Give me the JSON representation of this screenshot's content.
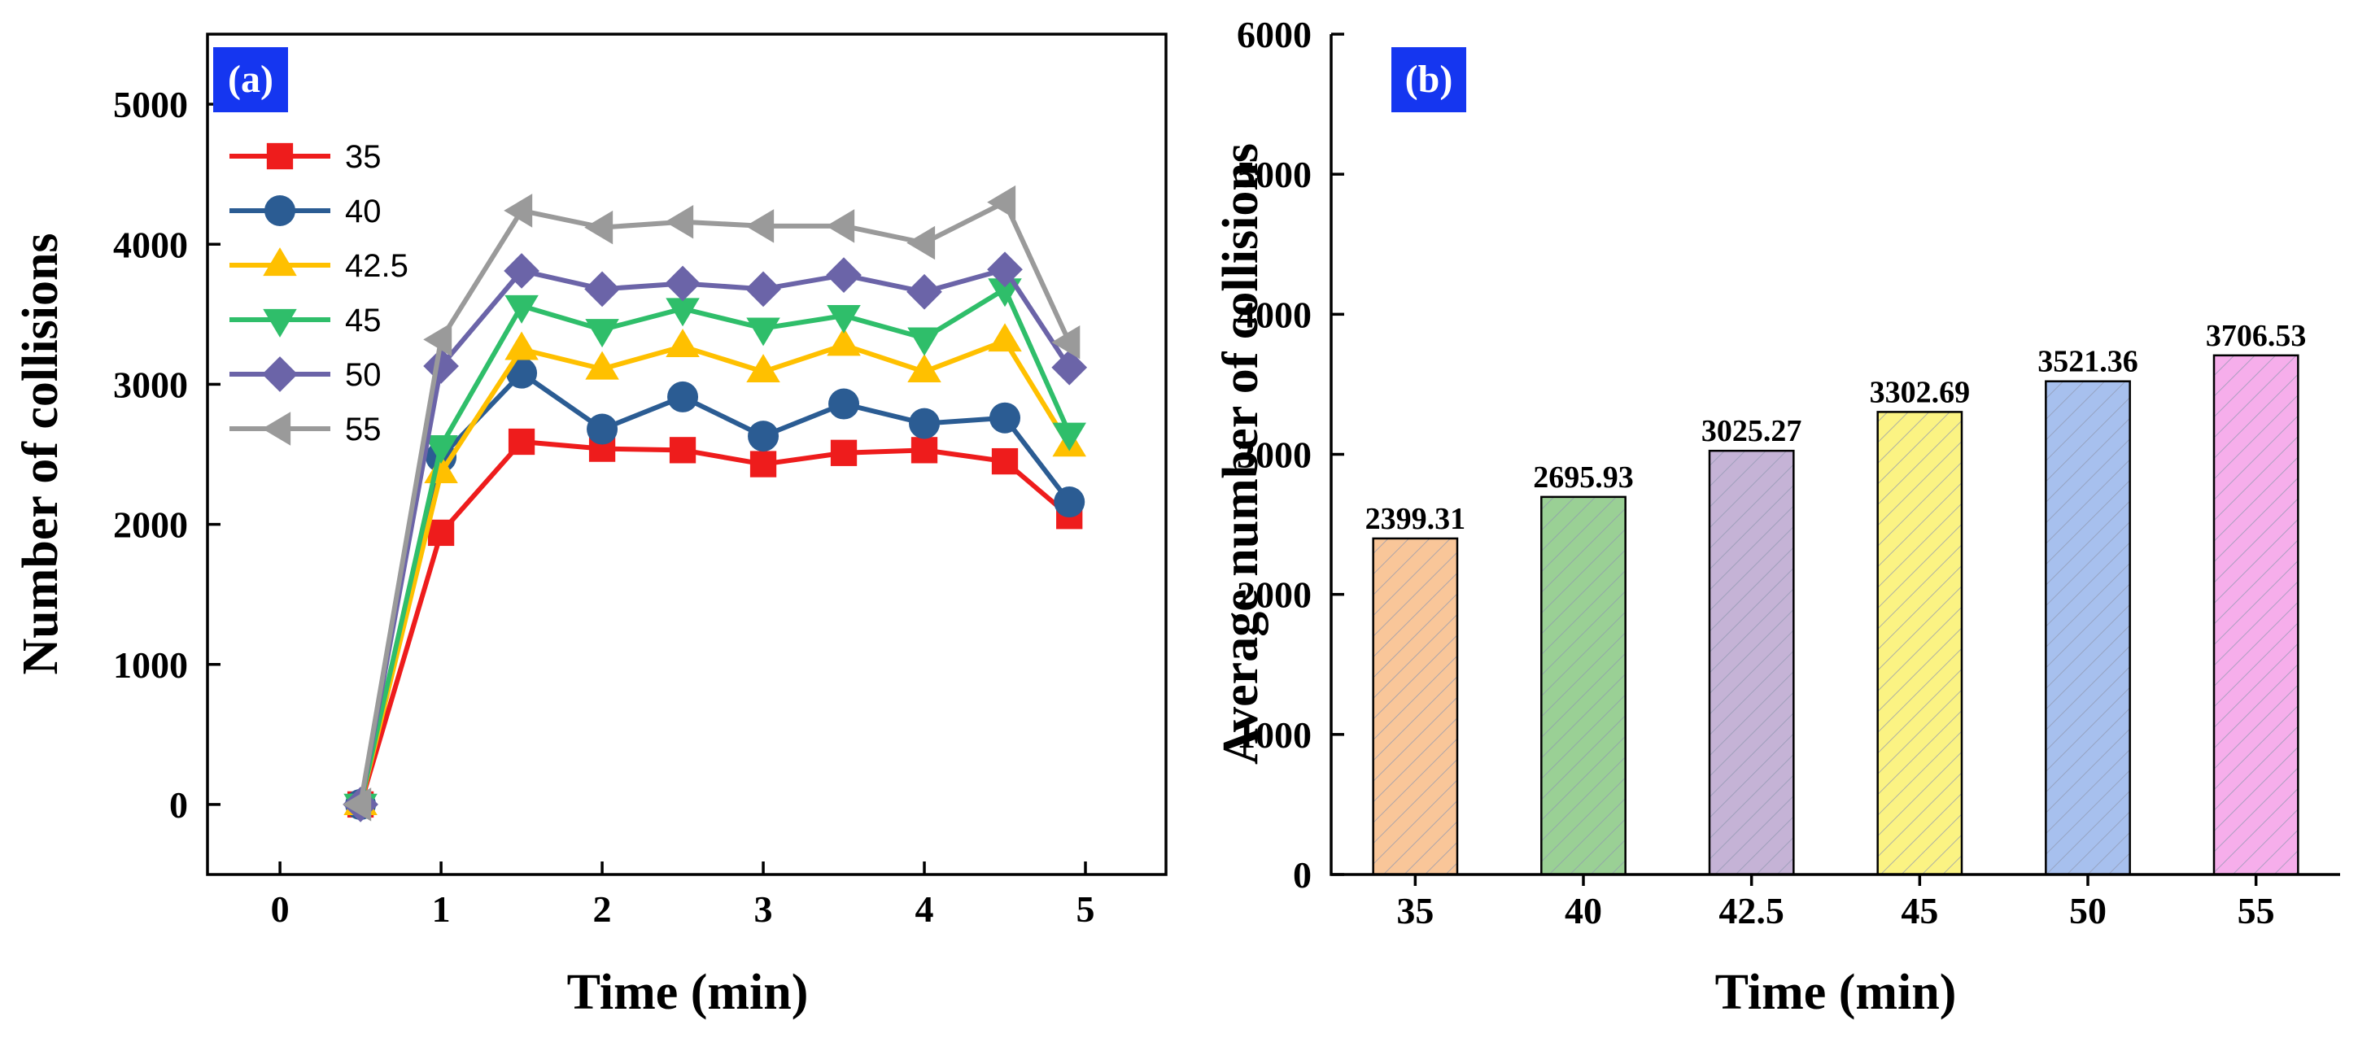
{
  "colors": {
    "s35": "#ee1c1c",
    "s40": "#2b5c93",
    "s42_5": "#ffc000",
    "s45": "#2fbe6a",
    "s50": "#6b64a8",
    "s55": "#9a9a9a",
    "panel_tag_bg": "#1536f0",
    "bar_fills": [
      "#f9c699",
      "#9ad095",
      "#c5b3d6",
      "#fbf383",
      "#a7c0ee",
      "#f6aeeb"
    ]
  },
  "chart_data": [
    {
      "type": "line",
      "panel_label": "(a)",
      "xlabel": "Time (min)",
      "ylabel": "Number of collisions",
      "xlim": [
        -0.45,
        5.5
      ],
      "ylim": [
        -500,
        5500
      ],
      "xticks": [
        0,
        1,
        2,
        3,
        4,
        5
      ],
      "xtick_labels": [
        "0",
        "1",
        "2",
        "3",
        "4",
        "5"
      ],
      "yticks": [
        0,
        1000,
        2000,
        3000,
        4000,
        5000
      ],
      "ytick_labels": [
        "0",
        "1000",
        "2000",
        "3000",
        "4000",
        "5000"
      ],
      "grid": false,
      "legend": "top-left",
      "x": [
        0.5,
        1.0,
        1.5,
        2.0,
        2.5,
        3.0,
        3.5,
        4.0,
        4.5,
        4.9
      ],
      "series": [
        {
          "name": "35",
          "marker": "square",
          "color_key": "s35",
          "values": [
            0,
            1940,
            2590,
            2540,
            2530,
            2430,
            2510,
            2530,
            2450,
            2060
          ]
        },
        {
          "name": "40",
          "marker": "circle",
          "color_key": "s40",
          "values": [
            0,
            2480,
            3080,
            2680,
            2910,
            2630,
            2860,
            2720,
            2760,
            2160
          ]
        },
        {
          "name": "42.5",
          "marker": "triangle-up",
          "color_key": "s42_5",
          "values": [
            0,
            2370,
            3250,
            3110,
            3270,
            3090,
            3280,
            3090,
            3310,
            2560
          ]
        },
        {
          "name": "45",
          "marker": "triangle-down",
          "color_key": "s45",
          "values": [
            0,
            2560,
            3560,
            3390,
            3540,
            3400,
            3490,
            3330,
            3680,
            2650
          ]
        },
        {
          "name": "50",
          "marker": "diamond",
          "color_key": "s50",
          "values": [
            0,
            3130,
            3810,
            3680,
            3720,
            3680,
            3780,
            3660,
            3820,
            3120
          ]
        },
        {
          "name": "55",
          "marker": "triangle-left",
          "color_key": "s55",
          "values": [
            0,
            3320,
            4240,
            4120,
            4160,
            4130,
            4130,
            4010,
            4300,
            3300
          ]
        }
      ]
    },
    {
      "type": "bar",
      "panel_label": "(b)",
      "xlabel": "Time (min)",
      "ylabel": "Average number of collisions",
      "ylim": [
        0,
        6000
      ],
      "yticks": [
        0,
        1000,
        2000,
        3000,
        4000,
        5000,
        6000
      ],
      "ytick_labels": [
        "0",
        "1000",
        "2000",
        "3000",
        "4000",
        "5000",
        "6000"
      ],
      "grid": false,
      "categories": [
        "35",
        "40",
        "42.5",
        "45",
        "50",
        "55"
      ],
      "values": [
        2399.31,
        2695.93,
        3025.27,
        3302.69,
        3521.36,
        3706.53
      ],
      "value_labels": [
        "2399.31",
        "2695.93",
        "3025.27",
        "3302.69",
        "3521.36",
        "3706.53"
      ],
      "pattern": "diagonal-hatch"
    }
  ]
}
